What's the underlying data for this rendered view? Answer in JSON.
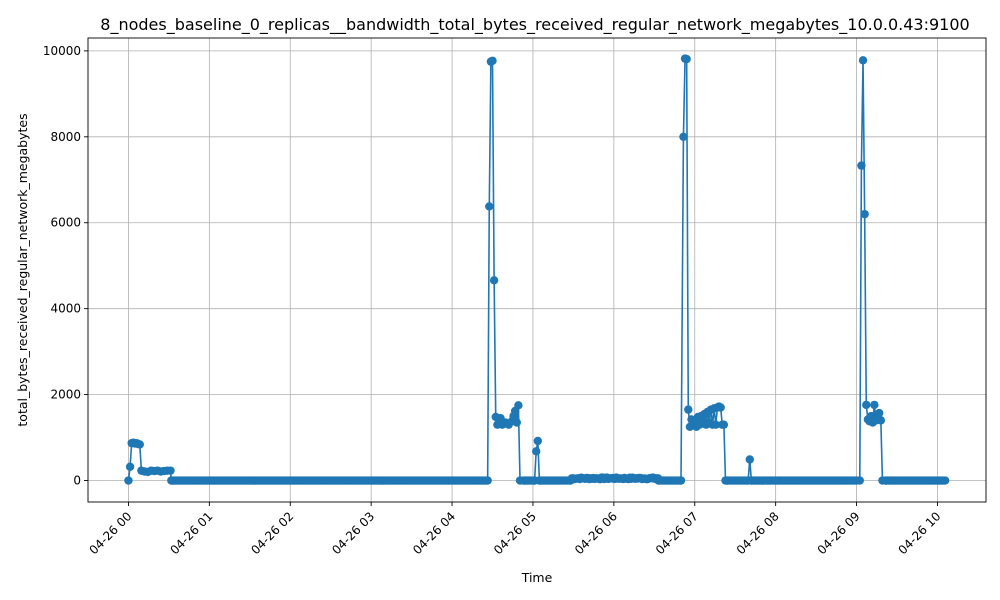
{
  "chart_data": {
    "type": "line",
    "title": "8_nodes_baseline_0_replicas__bandwidth_total_bytes_received_regular_network_megabytes_10.0.0.43:9100",
    "xlabel": "Time",
    "ylabel": "total_bytes_received_regular_network_megabytes",
    "ylim": [
      -500,
      10300
    ],
    "yticks": [
      0,
      2000,
      4000,
      6000,
      8000,
      10000
    ],
    "xticks": [
      {
        "label": "04-26 00",
        "hour": 0
      },
      {
        "label": "04-26 01",
        "hour": 1
      },
      {
        "label": "04-26 02",
        "hour": 2
      },
      {
        "label": "04-26 03",
        "hour": 3
      },
      {
        "label": "04-26 04",
        "hour": 4
      },
      {
        "label": "04-26 05",
        "hour": 5
      },
      {
        "label": "04-26 06",
        "hour": 6
      },
      {
        "label": "04-26 07",
        "hour": 7
      },
      {
        "label": "04-26 08",
        "hour": 8
      },
      {
        "label": "04-26 09",
        "hour": 9
      },
      {
        "label": "04-26 10",
        "hour": 10
      }
    ],
    "xlim_hours": [
      -0.5,
      10.6
    ],
    "grid": true,
    "legend": "none",
    "series_color": "#1f77b4",
    "segments": [
      {
        "x_start": 0.0,
        "x_end": 0.55,
        "points": [
          [
            0.0,
            0
          ],
          [
            0.02,
            320
          ],
          [
            0.04,
            870
          ],
          [
            0.06,
            880
          ],
          [
            0.08,
            860
          ],
          [
            0.1,
            870
          ],
          [
            0.12,
            850
          ],
          [
            0.14,
            840
          ],
          [
            0.16,
            230
          ],
          [
            0.2,
            210
          ],
          [
            0.24,
            200
          ],
          [
            0.28,
            230
          ],
          [
            0.32,
            220
          ],
          [
            0.36,
            230
          ],
          [
            0.4,
            210
          ],
          [
            0.44,
            220
          ],
          [
            0.48,
            230
          ],
          [
            0.52,
            230
          ],
          [
            0.53,
            0
          ],
          [
            0.55,
            0
          ]
        ]
      },
      {
        "x_start": 0.55,
        "x_end": 4.44,
        "constant": 0
      },
      {
        "x_start": 4.44,
        "x_end": 4.9,
        "points": [
          [
            4.44,
            0
          ],
          [
            4.46,
            6380
          ],
          [
            4.48,
            9750
          ],
          [
            4.5,
            9770
          ],
          [
            4.52,
            4660
          ],
          [
            4.54,
            1480
          ],
          [
            4.56,
            1300
          ],
          [
            4.6,
            1450
          ],
          [
            4.62,
            1300
          ],
          [
            4.66,
            1350
          ],
          [
            4.7,
            1300
          ],
          [
            4.74,
            1380
          ],
          [
            4.76,
            1500
          ],
          [
            4.78,
            1620
          ],
          [
            4.8,
            1350
          ],
          [
            4.82,
            1750
          ],
          [
            4.84,
            0
          ],
          [
            4.88,
            0
          ],
          [
            4.9,
            0
          ]
        ]
      },
      {
        "x_start": 4.9,
        "x_end": 5.02,
        "constant": 0
      },
      {
        "x_start": 5.02,
        "x_end": 5.08,
        "points": [
          [
            5.02,
            0
          ],
          [
            5.04,
            680
          ],
          [
            5.06,
            920
          ],
          [
            5.08,
            0
          ]
        ]
      },
      {
        "x_start": 5.08,
        "x_end": 5.48,
        "constant": 0
      },
      {
        "x_start": 5.48,
        "x_end": 6.55,
        "noisy": [
          30,
          70
        ]
      },
      {
        "x_start": 6.55,
        "x_end": 6.83,
        "constant": 0
      },
      {
        "x_start": 6.83,
        "x_end": 7.4,
        "points": [
          [
            6.83,
            0
          ],
          [
            6.86,
            8000
          ],
          [
            6.88,
            9820
          ],
          [
            6.9,
            9810
          ],
          [
            6.92,
            1650
          ],
          [
            6.94,
            1250
          ],
          [
            6.96,
            1420
          ],
          [
            6.98,
            1300
          ],
          [
            7.0,
            1350
          ],
          [
            7.02,
            1250
          ],
          [
            7.04,
            1480
          ],
          [
            7.06,
            1300
          ],
          [
            7.08,
            1500
          ],
          [
            7.1,
            1350
          ],
          [
            7.12,
            1550
          ],
          [
            7.14,
            1300
          ],
          [
            7.16,
            1600
          ],
          [
            7.18,
            1350
          ],
          [
            7.2,
            1650
          ],
          [
            7.22,
            1300
          ],
          [
            7.24,
            1680
          ],
          [
            7.26,
            1300
          ],
          [
            7.28,
            1700
          ],
          [
            7.3,
            1720
          ],
          [
            7.32,
            1700
          ],
          [
            7.34,
            1300
          ],
          [
            7.36,
            1300
          ],
          [
            7.38,
            0
          ],
          [
            7.4,
            0
          ]
        ]
      },
      {
        "x_start": 7.4,
        "x_end": 7.66,
        "constant": 0
      },
      {
        "x_start": 7.66,
        "x_end": 7.7,
        "points": [
          [
            7.66,
            0
          ],
          [
            7.68,
            490
          ],
          [
            7.7,
            0
          ]
        ]
      },
      {
        "x_start": 7.7,
        "x_end": 9.0,
        "constant": 0
      },
      {
        "x_start": 9.0,
        "x_end": 9.36,
        "points": [
          [
            9.0,
            0
          ],
          [
            9.04,
            0
          ],
          [
            9.06,
            7330
          ],
          [
            9.08,
            9780
          ],
          [
            9.1,
            6200
          ],
          [
            9.12,
            1760
          ],
          [
            9.14,
            1420
          ],
          [
            9.16,
            1380
          ],
          [
            9.18,
            1500
          ],
          [
            9.2,
            1350
          ],
          [
            9.22,
            1760
          ],
          [
            9.24,
            1400
          ],
          [
            9.26,
            1500
          ],
          [
            9.28,
            1570
          ],
          [
            9.3,
            1400
          ],
          [
            9.32,
            0
          ],
          [
            9.36,
            0
          ]
        ]
      },
      {
        "x_start": 9.36,
        "x_end": 10.1,
        "constant": 0
      }
    ]
  }
}
